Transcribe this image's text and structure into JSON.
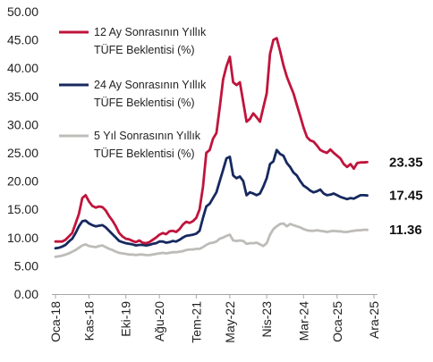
{
  "chart_data": {
    "type": "line",
    "ylim": [
      0,
      50
    ],
    "y_ticks": [
      "0.00",
      "5.00",
      "10.00",
      "15.00",
      "20.00",
      "25.00",
      "30.00",
      "35.00",
      "40.00",
      "45.00",
      "50.00"
    ],
    "x_ticks": [
      {
        "label": "Oca-18",
        "x": 2018.0
      },
      {
        "label": "Kas-18",
        "x": 2018.8333
      },
      {
        "label": "Eki-19",
        "x": 2019.75
      },
      {
        "label": "Ağu-20",
        "x": 2020.5833
      },
      {
        "label": "Tem-21",
        "x": 2021.5
      },
      {
        "label": "May-22",
        "x": 2022.3333
      },
      {
        "label": "Nis-23",
        "x": 2023.25
      },
      {
        "label": "Mar-24",
        "x": 2024.1667
      },
      {
        "label": "Oca-25",
        "x": 2025.0
      },
      {
        "label": "Ara-25",
        "x": 2025.9167
      }
    ],
    "grid": false,
    "legend_position": "top-left",
    "series": [
      {
        "name_lines": [
          "12 Ay Sonrasının Yıllık",
          "TÜFE Beklentisi (%)"
        ],
        "color": "#c0143c",
        "end_label": "23.35",
        "points": [
          [
            2018.0,
            9.3
          ],
          [
            2018.0833,
            9.3
          ],
          [
            2018.1667,
            9.3
          ],
          [
            2018.25,
            9.6
          ],
          [
            2018.3333,
            10.2
          ],
          [
            2018.4167,
            10.8
          ],
          [
            2018.5,
            12.5
          ],
          [
            2018.5833,
            14.2
          ],
          [
            2018.6667,
            17.0
          ],
          [
            2018.75,
            17.5
          ],
          [
            2018.8333,
            16.4
          ],
          [
            2018.9167,
            15.6
          ],
          [
            2019.0,
            15.3
          ],
          [
            2019.0833,
            15.5
          ],
          [
            2019.1667,
            15.4
          ],
          [
            2019.25,
            14.8
          ],
          [
            2019.3333,
            13.8
          ],
          [
            2019.4167,
            13.0
          ],
          [
            2019.5,
            12.0
          ],
          [
            2019.5833,
            10.8
          ],
          [
            2019.6667,
            10.2
          ],
          [
            2019.75,
            9.8
          ],
          [
            2019.8333,
            9.7
          ],
          [
            2019.9167,
            9.4
          ],
          [
            2020.0,
            9.2
          ],
          [
            2020.0833,
            9.5
          ],
          [
            2020.1667,
            9.1
          ],
          [
            2020.25,
            9.0
          ],
          [
            2020.3333,
            9.2
          ],
          [
            2020.4167,
            9.6
          ],
          [
            2020.5,
            10.0
          ],
          [
            2020.5833,
            10.5
          ],
          [
            2020.6667,
            10.8
          ],
          [
            2020.75,
            10.6
          ],
          [
            2020.8333,
            11.1
          ],
          [
            2020.9167,
            11.2
          ],
          [
            2021.0,
            11.0
          ],
          [
            2021.0833,
            11.5
          ],
          [
            2021.1667,
            12.3
          ],
          [
            2021.25,
            12.8
          ],
          [
            2021.3333,
            12.6
          ],
          [
            2021.4167,
            12.9
          ],
          [
            2021.5,
            13.5
          ],
          [
            2021.5833,
            15.0
          ],
          [
            2021.6667,
            19.0
          ],
          [
            2021.75,
            25.0
          ],
          [
            2021.8333,
            25.5
          ],
          [
            2021.9167,
            27.5
          ],
          [
            2022.0,
            28.5
          ],
          [
            2022.0833,
            33.0
          ],
          [
            2022.1667,
            38.0
          ],
          [
            2022.25,
            40.3
          ],
          [
            2022.3333,
            42.0
          ],
          [
            2022.4167,
            37.5
          ],
          [
            2022.5,
            37.0
          ],
          [
            2022.5833,
            37.5
          ],
          [
            2022.6667,
            34.0
          ],
          [
            2022.75,
            30.5
          ],
          [
            2022.8333,
            31.0
          ],
          [
            2022.9167,
            32.0
          ],
          [
            2023.0,
            31.3
          ],
          [
            2023.0833,
            30.5
          ],
          [
            2023.1667,
            33.0
          ],
          [
            2023.25,
            35.5
          ],
          [
            2023.3333,
            42.5
          ],
          [
            2023.4167,
            45.0
          ],
          [
            2023.5,
            45.3
          ],
          [
            2023.5833,
            43.0
          ],
          [
            2023.6667,
            40.5
          ],
          [
            2023.75,
            38.5
          ],
          [
            2023.8333,
            37.0
          ],
          [
            2023.9167,
            35.5
          ],
          [
            2024.0,
            33.5
          ],
          [
            2024.0833,
            31.5
          ],
          [
            2024.1667,
            29.5
          ],
          [
            2024.25,
            27.8
          ],
          [
            2024.3333,
            27.2
          ],
          [
            2024.4167,
            27.0
          ],
          [
            2024.5,
            26.3
          ],
          [
            2024.5833,
            25.5
          ],
          [
            2024.6667,
            25.2
          ],
          [
            2024.75,
            25.0
          ],
          [
            2024.8333,
            25.6
          ],
          [
            2024.9167,
            25.0
          ],
          [
            2025.0,
            24.5
          ],
          [
            2025.0833,
            24.0
          ],
          [
            2025.1667,
            23.0
          ],
          [
            2025.25,
            22.5
          ],
          [
            2025.3333,
            23.0
          ],
          [
            2025.4167,
            22.2
          ],
          [
            2025.5,
            23.2
          ],
          [
            2025.5833,
            23.3
          ],
          [
            2025.6667,
            23.3
          ],
          [
            2025.75,
            23.35
          ]
        ]
      },
      {
        "name_lines": [
          "24 Ay Sonrasının Yıllık",
          "TÜFE Beklentisi (%)"
        ],
        "color": "#17295e",
        "end_label": "17.45",
        "points": [
          [
            2018.0,
            8.1
          ],
          [
            2018.0833,
            8.2
          ],
          [
            2018.1667,
            8.4
          ],
          [
            2018.25,
            8.7
          ],
          [
            2018.3333,
            9.3
          ],
          [
            2018.4167,
            9.8
          ],
          [
            2018.5,
            10.8
          ],
          [
            2018.5833,
            12.0
          ],
          [
            2018.6667,
            12.9
          ],
          [
            2018.75,
            13.0
          ],
          [
            2018.8333,
            12.5
          ],
          [
            2018.9167,
            12.2
          ],
          [
            2019.0,
            12.0
          ],
          [
            2019.0833,
            12.1
          ],
          [
            2019.1667,
            12.2
          ],
          [
            2019.25,
            11.8
          ],
          [
            2019.3333,
            11.2
          ],
          [
            2019.4167,
            10.6
          ],
          [
            2019.5,
            10.0
          ],
          [
            2019.5833,
            9.4
          ],
          [
            2019.6667,
            9.2
          ],
          [
            2019.75,
            9.0
          ],
          [
            2019.8333,
            8.9
          ],
          [
            2019.9167,
            8.8
          ],
          [
            2020.0,
            8.6
          ],
          [
            2020.0833,
            8.7
          ],
          [
            2020.1667,
            8.7
          ],
          [
            2020.25,
            8.6
          ],
          [
            2020.3333,
            8.7
          ],
          [
            2020.4167,
            8.9
          ],
          [
            2020.5,
            9.0
          ],
          [
            2020.5833,
            9.3
          ],
          [
            2020.6667,
            9.3
          ],
          [
            2020.75,
            9.1
          ],
          [
            2020.8333,
            9.2
          ],
          [
            2020.9167,
            9.4
          ],
          [
            2021.0,
            9.3
          ],
          [
            2021.0833,
            9.6
          ],
          [
            2021.1667,
            10.0
          ],
          [
            2021.25,
            10.3
          ],
          [
            2021.3333,
            10.4
          ],
          [
            2021.4167,
            10.5
          ],
          [
            2021.5,
            10.7
          ],
          [
            2021.5833,
            11.2
          ],
          [
            2021.6667,
            13.5
          ],
          [
            2021.75,
            15.5
          ],
          [
            2021.8333,
            16.0
          ],
          [
            2021.9167,
            17.0
          ],
          [
            2022.0,
            18.0
          ],
          [
            2022.0833,
            20.0
          ],
          [
            2022.1667,
            22.0
          ],
          [
            2022.25,
            24.0
          ],
          [
            2022.3333,
            24.3
          ],
          [
            2022.4167,
            21.0
          ],
          [
            2022.5,
            20.5
          ],
          [
            2022.5833,
            20.8
          ],
          [
            2022.6667,
            20.0
          ],
          [
            2022.75,
            17.5
          ],
          [
            2022.8333,
            18.0
          ],
          [
            2022.9167,
            17.8
          ],
          [
            2023.0,
            17.5
          ],
          [
            2023.0833,
            17.8
          ],
          [
            2023.1667,
            19.0
          ],
          [
            2023.25,
            20.5
          ],
          [
            2023.3333,
            23.0
          ],
          [
            2023.4167,
            23.5
          ],
          [
            2023.5,
            25.5
          ],
          [
            2023.5833,
            24.8
          ],
          [
            2023.6667,
            24.5
          ],
          [
            2023.75,
            23.2
          ],
          [
            2023.8333,
            22.5
          ],
          [
            2023.9167,
            21.5
          ],
          [
            2024.0,
            21.0
          ],
          [
            2024.0833,
            20.0
          ],
          [
            2024.1667,
            19.2
          ],
          [
            2024.25,
            18.8
          ],
          [
            2024.3333,
            18.3
          ],
          [
            2024.4167,
            18.0
          ],
          [
            2024.5,
            18.2
          ],
          [
            2024.5833,
            18.5
          ],
          [
            2024.6667,
            17.8
          ],
          [
            2024.75,
            17.5
          ],
          [
            2024.8333,
            17.6
          ],
          [
            2024.9167,
            17.8
          ],
          [
            2025.0,
            17.5
          ],
          [
            2025.0833,
            17.2
          ],
          [
            2025.1667,
            17.0
          ],
          [
            2025.25,
            16.8
          ],
          [
            2025.3333,
            17.0
          ],
          [
            2025.4167,
            16.9
          ],
          [
            2025.5,
            17.2
          ],
          [
            2025.5833,
            17.5
          ],
          [
            2025.6667,
            17.5
          ],
          [
            2025.75,
            17.45
          ]
        ]
      },
      {
        "name_lines": [
          "5 Yıl Sonrasının Yıllık",
          "TÜFE Beklentisi (%)"
        ],
        "color": "#bebcb9",
        "end_label": "11.36",
        "points": [
          [
            2018.0,
            6.6
          ],
          [
            2018.0833,
            6.7
          ],
          [
            2018.1667,
            6.8
          ],
          [
            2018.25,
            7.0
          ],
          [
            2018.3333,
            7.2
          ],
          [
            2018.4167,
            7.5
          ],
          [
            2018.5,
            7.8
          ],
          [
            2018.5833,
            8.2
          ],
          [
            2018.6667,
            8.6
          ],
          [
            2018.75,
            8.8
          ],
          [
            2018.8333,
            8.5
          ],
          [
            2018.9167,
            8.4
          ],
          [
            2019.0,
            8.3
          ],
          [
            2019.0833,
            8.5
          ],
          [
            2019.1667,
            8.6
          ],
          [
            2019.25,
            8.3
          ],
          [
            2019.3333,
            8.0
          ],
          [
            2019.4167,
            7.8
          ],
          [
            2019.5,
            7.5
          ],
          [
            2019.5833,
            7.3
          ],
          [
            2019.6667,
            7.2
          ],
          [
            2019.75,
            7.1
          ],
          [
            2019.8333,
            7.0
          ],
          [
            2019.9167,
            7.0
          ],
          [
            2020.0,
            6.9
          ],
          [
            2020.0833,
            7.0
          ],
          [
            2020.1667,
            7.0
          ],
          [
            2020.25,
            6.9
          ],
          [
            2020.3333,
            6.9
          ],
          [
            2020.4167,
            7.0
          ],
          [
            2020.5,
            7.1
          ],
          [
            2020.5833,
            7.2
          ],
          [
            2020.6667,
            7.3
          ],
          [
            2020.75,
            7.2
          ],
          [
            2020.8333,
            7.3
          ],
          [
            2020.9167,
            7.4
          ],
          [
            2021.0,
            7.4
          ],
          [
            2021.0833,
            7.5
          ],
          [
            2021.1667,
            7.6
          ],
          [
            2021.25,
            7.8
          ],
          [
            2021.3333,
            7.9
          ],
          [
            2021.4167,
            7.9
          ],
          [
            2021.5,
            8.0
          ],
          [
            2021.5833,
            8.0
          ],
          [
            2021.6667,
            8.3
          ],
          [
            2021.75,
            8.7
          ],
          [
            2021.8333,
            9.0
          ],
          [
            2021.9167,
            9.1
          ],
          [
            2022.0,
            9.3
          ],
          [
            2022.0833,
            9.8
          ],
          [
            2022.1667,
            10.0
          ],
          [
            2022.25,
            10.3
          ],
          [
            2022.3333,
            10.5
          ],
          [
            2022.4167,
            9.5
          ],
          [
            2022.5,
            9.4
          ],
          [
            2022.5833,
            9.5
          ],
          [
            2022.6667,
            9.4
          ],
          [
            2022.75,
            8.9
          ],
          [
            2022.8333,
            9.0
          ],
          [
            2022.9167,
            9.0
          ],
          [
            2023.0,
            9.1
          ],
          [
            2023.0833,
            8.8
          ],
          [
            2023.1667,
            8.5
          ],
          [
            2023.25,
            9.0
          ],
          [
            2023.3333,
            10.5
          ],
          [
            2023.4167,
            11.5
          ],
          [
            2023.5,
            12.0
          ],
          [
            2023.5833,
            12.4
          ],
          [
            2023.6667,
            12.5
          ],
          [
            2023.75,
            12.0
          ],
          [
            2023.8333,
            12.4
          ],
          [
            2023.9167,
            12.2
          ],
          [
            2024.0,
            12.0
          ],
          [
            2024.0833,
            11.8
          ],
          [
            2024.1667,
            11.5
          ],
          [
            2024.25,
            11.3
          ],
          [
            2024.3333,
            11.2
          ],
          [
            2024.4167,
            11.2
          ],
          [
            2024.5,
            11.3
          ],
          [
            2024.5833,
            11.2
          ],
          [
            2024.6667,
            11.1
          ],
          [
            2024.75,
            11.0
          ],
          [
            2024.8333,
            11.1
          ],
          [
            2024.9167,
            11.2
          ],
          [
            2025.0,
            11.1
          ],
          [
            2025.0833,
            11.1
          ],
          [
            2025.1667,
            11.0
          ],
          [
            2025.25,
            11.0
          ],
          [
            2025.3333,
            11.1
          ],
          [
            2025.4167,
            11.2
          ],
          [
            2025.5,
            11.3
          ],
          [
            2025.5833,
            11.3
          ],
          [
            2025.6667,
            11.4
          ],
          [
            2025.75,
            11.36
          ]
        ]
      }
    ]
  }
}
